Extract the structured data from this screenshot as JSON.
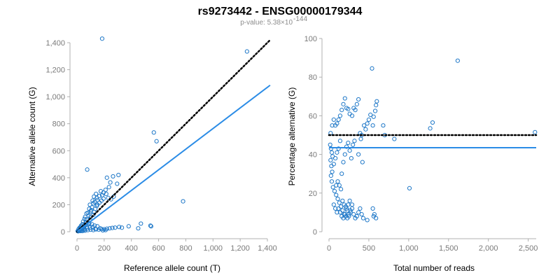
{
  "colors": {
    "points": "#1f78c8",
    "fit": "#2b8ce6",
    "reference": "#000000",
    "axis": "#b0b0b0",
    "tick_text": "#7a7a7a"
  },
  "figure": {
    "title": "rs9273442 - ENSG00000179344",
    "subtitle_prefix": "p-value: 5.38×10",
    "subtitle_exponent": "-144"
  },
  "chart_data": [
    {
      "type": "scatter",
      "xlabel": "Reference allele count (T)",
      "ylabel": "Alternative allele count (G)",
      "xlim": [
        0,
        1400
      ],
      "ylim": [
        0,
        1400
      ],
      "x_ticks": [
        0,
        200,
        400,
        600,
        800,
        1000,
        1200,
        1400
      ],
      "x_tick_labels": [
        "0",
        "200",
        "400",
        "600",
        "800",
        "1,000",
        "1,200",
        "1,400"
      ],
      "y_ticks": [
        0,
        200,
        400,
        600,
        800,
        1000,
        1200,
        1400
      ],
      "y_tick_labels": [
        "0",
        "200",
        "400",
        "600",
        "800",
        "1,000",
        "1,200",
        "1,400"
      ],
      "reference_line": {
        "style": "dotted",
        "from": [
          0,
          0
        ],
        "to": [
          1420,
          1420
        ]
      },
      "fit_line": {
        "style": "solid",
        "from": [
          0,
          0
        ],
        "to": [
          1420,
          1085
        ]
      },
      "points": [
        [
          185,
          1430
        ],
        [
          1250,
          1335
        ],
        [
          565,
          735
        ],
        [
          585,
          670
        ],
        [
          305,
          420
        ],
        [
          220,
          400
        ],
        [
          265,
          410
        ],
        [
          245,
          365
        ],
        [
          75,
          460
        ],
        [
          295,
          355
        ],
        [
          235,
          330
        ],
        [
          210,
          310
        ],
        [
          175,
          300
        ],
        [
          195,
          290
        ],
        [
          185,
          270
        ],
        [
          215,
          280
        ],
        [
          165,
          265
        ],
        [
          145,
          250
        ],
        [
          125,
          260
        ],
        [
          140,
          280
        ],
        [
          150,
          235
        ],
        [
          130,
          220
        ],
        [
          115,
          230
        ],
        [
          95,
          200
        ],
        [
          110,
          180
        ],
        [
          135,
          170
        ],
        [
          90,
          170
        ],
        [
          100,
          150
        ],
        [
          80,
          140
        ],
        [
          70,
          135
        ],
        [
          85,
          120
        ],
        [
          60,
          110
        ],
        [
          100,
          110
        ],
        [
          120,
          125
        ],
        [
          55,
          95
        ],
        [
          70,
          90
        ],
        [
          95,
          90
        ],
        [
          45,
          75
        ],
        [
          65,
          70
        ],
        [
          85,
          65
        ],
        [
          40,
          55
        ],
        [
          60,
          50
        ],
        [
          30,
          45
        ],
        [
          50,
          40
        ],
        [
          70,
          35
        ],
        [
          25,
          30
        ],
        [
          45,
          30
        ],
        [
          35,
          25
        ],
        [
          55,
          20
        ],
        [
          20,
          15
        ],
        [
          40,
          15
        ],
        [
          15,
          10
        ],
        [
          30,
          10
        ],
        [
          50,
          10
        ],
        [
          10,
          8
        ],
        [
          25,
          5
        ],
        [
          40,
          5
        ],
        [
          60,
          8
        ],
        [
          80,
          12
        ],
        [
          100,
          15
        ],
        [
          120,
          12
        ],
        [
          140,
          18
        ],
        [
          160,
          15
        ],
        [
          180,
          20
        ],
        [
          200,
          18
        ],
        [
          220,
          22
        ],
        [
          240,
          25
        ],
        [
          260,
          28
        ],
        [
          280,
          30
        ],
        [
          310,
          35
        ],
        [
          330,
          30
        ],
        [
          380,
          40
        ],
        [
          450,
          25
        ],
        [
          470,
          60
        ],
        [
          540,
          45
        ],
        [
          545,
          40
        ],
        [
          780,
          225
        ],
        [
          250,
          240
        ],
        [
          270,
          260
        ],
        [
          120,
          210
        ],
        [
          150,
          200
        ],
        [
          180,
          230
        ],
        [
          230,
          250
        ],
        [
          105,
          160
        ],
        [
          125,
          145
        ],
        [
          145,
          190
        ],
        [
          165,
          215
        ],
        [
          195,
          245
        ],
        [
          90,
          60
        ],
        [
          110,
          55
        ],
        [
          130,
          45
        ],
        [
          150,
          40
        ],
        [
          170,
          25
        ],
        [
          190,
          10
        ],
        [
          210,
          12
        ],
        [
          75,
          25
        ],
        [
          95,
          30
        ],
        [
          115,
          35
        ],
        [
          135,
          20
        ],
        [
          20,
          30
        ],
        [
          35,
          40
        ],
        [
          5,
          5
        ],
        [
          12,
          20
        ],
        [
          18,
          8
        ],
        [
          28,
          18
        ],
        [
          8,
          3
        ],
        [
          16,
          12
        ]
      ]
    },
    {
      "type": "scatter",
      "xlabel": "Total number of reads",
      "ylabel": "Percentage alternative (G)",
      "xlim": [
        0,
        2600
      ],
      "ylim": [
        0,
        100
      ],
      "x_ticks": [
        0,
        500,
        1000,
        1500,
        2000,
        2500
      ],
      "x_tick_labels": [
        "0",
        "500",
        "1,000",
        "1,500",
        "2,000",
        "2,500"
      ],
      "y_ticks": [
        0,
        20,
        40,
        60,
        80,
        100
      ],
      "y_tick_labels": [
        "0",
        "20",
        "40",
        "60",
        "80",
        "100"
      ],
      "reference_line": {
        "style": "dotted",
        "y": 50
      },
      "fit_line": {
        "style": "solid",
        "y": 43.5
      },
      "points": [
        [
          1615,
          88.5
        ],
        [
          540,
          84.5
        ],
        [
          1300,
          56.5
        ],
        [
          1270,
          53.5
        ],
        [
          1010,
          22.5
        ],
        [
          2585,
          51.5
        ],
        [
          600,
          67.5
        ],
        [
          590,
          65.5
        ],
        [
          580,
          62.5
        ],
        [
          560,
          59.5
        ],
        [
          520,
          60.5
        ],
        [
          500,
          58
        ],
        [
          550,
          55
        ],
        [
          480,
          56
        ],
        [
          460,
          53
        ],
        [
          440,
          55
        ],
        [
          410,
          50
        ],
        [
          390,
          51
        ],
        [
          370,
          68.5
        ],
        [
          350,
          66
        ],
        [
          330,
          63
        ],
        [
          310,
          64
        ],
        [
          290,
          60
        ],
        [
          260,
          61
        ],
        [
          240,
          63.5
        ],
        [
          220,
          64
        ],
        [
          200,
          69
        ],
        [
          180,
          66
        ],
        [
          160,
          63
        ],
        [
          140,
          60
        ],
        [
          120,
          58
        ],
        [
          100,
          56
        ],
        [
          80,
          55
        ],
        [
          60,
          58
        ],
        [
          40,
          55
        ],
        [
          20,
          51
        ],
        [
          15,
          45
        ],
        [
          25,
          43
        ],
        [
          35,
          41
        ],
        [
          45,
          39
        ],
        [
          20,
          37
        ],
        [
          30,
          34
        ],
        [
          40,
          31
        ],
        [
          25,
          29
        ],
        [
          35,
          26
        ],
        [
          50,
          23
        ],
        [
          70,
          21
        ],
        [
          90,
          19
        ],
        [
          110,
          17
        ],
        [
          130,
          15
        ],
        [
          150,
          13
        ],
        [
          170,
          11
        ],
        [
          190,
          9
        ],
        [
          210,
          8
        ],
        [
          230,
          7
        ],
        [
          250,
          8
        ],
        [
          270,
          10
        ],
        [
          290,
          12
        ],
        [
          310,
          9
        ],
        [
          330,
          7
        ],
        [
          350,
          8
        ],
        [
          370,
          10
        ],
        [
          390,
          12
        ],
        [
          410,
          9
        ],
        [
          430,
          7
        ],
        [
          480,
          6
        ],
        [
          550,
          12
        ],
        [
          560,
          8
        ],
        [
          570,
          9
        ],
        [
          590,
          7
        ],
        [
          130,
          24
        ],
        [
          150,
          22
        ],
        [
          110,
          26
        ],
        [
          90,
          24
        ],
        [
          160,
          30
        ],
        [
          180,
          36
        ],
        [
          200,
          40
        ],
        [
          220,
          44
        ],
        [
          240,
          46
        ],
        [
          260,
          42
        ],
        [
          280,
          38
        ],
        [
          300,
          45
        ],
        [
          320,
          47
        ],
        [
          140,
          47
        ],
        [
          120,
          43
        ],
        [
          100,
          41
        ],
        [
          80,
          38
        ],
        [
          60,
          35
        ],
        [
          170,
          16
        ],
        [
          190,
          14
        ],
        [
          210,
          13
        ],
        [
          230,
          11
        ],
        [
          250,
          9
        ],
        [
          270,
          11
        ],
        [
          290,
          14
        ],
        [
          120,
          12
        ],
        [
          140,
          10
        ],
        [
          160,
          8
        ],
        [
          180,
          7
        ],
        [
          200,
          9
        ],
        [
          220,
          12
        ],
        [
          240,
          14
        ],
        [
          260,
          16
        ],
        [
          60,
          14
        ],
        [
          80,
          12
        ],
        [
          100,
          10
        ],
        [
          370,
          40
        ],
        [
          400,
          48
        ],
        [
          420,
          36
        ],
        [
          820,
          48
        ],
        [
          680,
          55
        ],
        [
          700,
          50
        ]
      ]
    }
  ]
}
